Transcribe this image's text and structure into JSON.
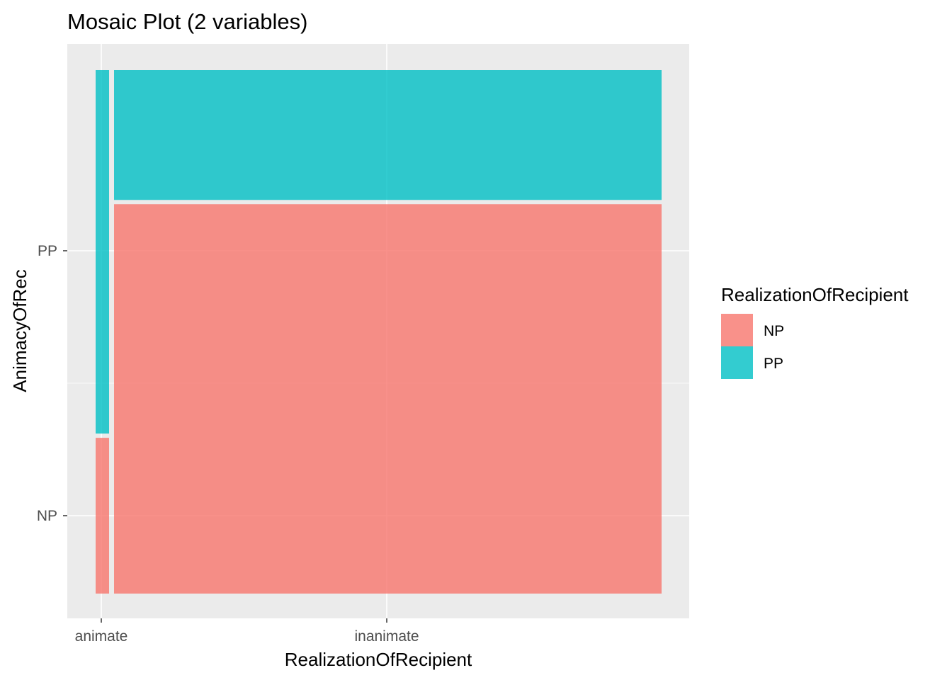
{
  "chart_data": {
    "type": "mosaic",
    "title": "Mosaic Plot (2 variables)",
    "xlabel": "RealizationOfRecipient",
    "ylabel": "AnimacyOfRec",
    "x_categories": [
      "animate",
      "inanimate"
    ],
    "y_categories": [
      "NP",
      "PP"
    ],
    "x_proportions": [
      0.024,
      0.976
    ],
    "fill_variable": "RealizationOfRecipient",
    "cells": [
      {
        "x": "animate",
        "fill": "NP",
        "proportion": 0.3
      },
      {
        "x": "animate",
        "fill": "PP",
        "proportion": 0.7
      },
      {
        "x": "inanimate",
        "fill": "NP",
        "proportion": 0.75
      },
      {
        "x": "inanimate",
        "fill": "PP",
        "proportion": 0.25
      }
    ],
    "legend": {
      "title": "RealizationOfRecipient",
      "position": "right",
      "entries": [
        {
          "label": "NP",
          "color": "#F8766D"
        },
        {
          "label": "PP",
          "color": "#00BFC4"
        }
      ]
    },
    "grid": true,
    "panel_background": "#EBEBEB"
  }
}
